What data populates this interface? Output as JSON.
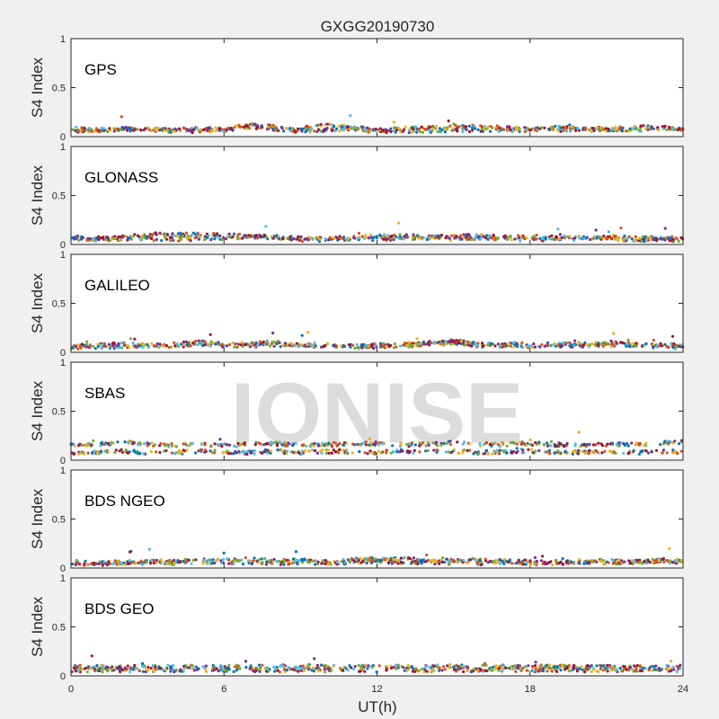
{
  "chart_data": {
    "type": "scatter",
    "title": "GXGG20190730",
    "xlabel": "UT(h)",
    "ylabel": "S4 Index",
    "xlim": [
      0,
      24
    ],
    "ylim": [
      0,
      1
    ],
    "x_ticks": [
      "0",
      "6",
      "12",
      "18",
      "24"
    ],
    "y_ticks": [
      "0",
      "0.5",
      "1"
    ],
    "watermark": "IONISE",
    "series_colors": [
      "#0072bd",
      "#d95319",
      "#edb120",
      "#7e2f8e",
      "#77ac30",
      "#4dbeee",
      "#a2142f"
    ],
    "panels": [
      {
        "label": "GPS",
        "series": [
          {
            "x": [
              0,
              1,
              2,
              3,
              4,
              5,
              6,
              7,
              8,
              9,
              10,
              11,
              12,
              13,
              14,
              15,
              16,
              17,
              18,
              19,
              20,
              21,
              22,
              23,
              24
            ],
            "values": [
              0.06,
              0.06,
              0.07,
              0.07,
              0.06,
              0.06,
              0.07,
              0.1,
              0.08,
              0.06,
              0.07,
              0.07,
              0.06,
              0.06,
              0.06,
              0.07,
              0.07,
              0.07,
              0.07,
              0.06,
              0.07,
              0.07,
              0.07,
              0.08,
              0.07
            ]
          },
          {
            "x": [
              0,
              1,
              2,
              3,
              4,
              5,
              6,
              7,
              8,
              9,
              10,
              11,
              12,
              13,
              14,
              15,
              16,
              17,
              18,
              19,
              20,
              21,
              22,
              23,
              24
            ],
            "values": [
              0.08,
              0.07,
              0.08,
              0.07,
              0.07,
              0.08,
              0.07,
              0.12,
              0.1,
              0.08,
              0.12,
              0.09,
              0.07,
              0.08,
              0.09,
              0.1,
              0.1,
              0.09,
              0.08,
              0.09,
              0.08,
              0.08,
              0.09,
              0.1,
              0.08
            ]
          }
        ]
      },
      {
        "label": "GLONASS",
        "series": [
          {
            "x": [
              0,
              1,
              2,
              3,
              4,
              5,
              6,
              7,
              8,
              9,
              10,
              11,
              12,
              13,
              14,
              15,
              16,
              17,
              18,
              19,
              20,
              21,
              22,
              23,
              24
            ],
            "values": [
              0.05,
              0.06,
              0.07,
              0.1,
              0.1,
              0.1,
              0.09,
              0.09,
              0.07,
              0.05,
              0.05,
              0.06,
              0.06,
              0.06,
              0.07,
              0.06,
              0.07,
              0.06,
              0.05,
              0.06,
              0.06,
              0.06,
              0.05,
              0.05,
              0.05
            ]
          },
          {
            "x": [
              0,
              1,
              2,
              3,
              4,
              5,
              6,
              7,
              8,
              9,
              10,
              11,
              12,
              13,
              14,
              15,
              16,
              17,
              18,
              19,
              20,
              21,
              22,
              23,
              24
            ],
            "values": [
              0.08,
              0.05,
              0.06,
              0.06,
              0.05,
              0.06,
              0.07,
              0.08,
              0.08,
              0.06,
              0.06,
              0.07,
              0.08,
              0.09,
              0.07,
              0.08,
              0.09,
              0.07,
              0.08,
              0.07,
              0.07,
              0.08,
              0.07,
              0.06,
              0.06
            ]
          }
        ]
      },
      {
        "label": "GALILEO",
        "series": [
          {
            "x": [
              0,
              1,
              2,
              3,
              4,
              5,
              6,
              7,
              8,
              9,
              10,
              11,
              12,
              13,
              14,
              15,
              16,
              17,
              18,
              19,
              20,
              21,
              22,
              23,
              24
            ],
            "values": [
              0.05,
              0.05,
              0.06,
              0.07,
              0.06,
              0.09,
              0.07,
              0.07,
              0.08,
              0.07,
              0.07,
              0.06,
              0.06,
              0.07,
              0.08,
              0.1,
              0.07,
              0.07,
              0.06,
              0.07,
              0.07,
              0.08,
              0.07,
              0.06,
              0.05
            ]
          },
          {
            "x": [
              0,
              1,
              2,
              3,
              4,
              5,
              6,
              7,
              8,
              9,
              10,
              11,
              12,
              13,
              14,
              15,
              16,
              17,
              18,
              19,
              20,
              21,
              22,
              23,
              24
            ],
            "values": [
              0.06,
              0.07,
              0.08,
              0.07,
              0.08,
              0.1,
              0.08,
              0.09,
              0.1,
              0.08,
              0.07,
              0.07,
              0.07,
              0.08,
              0.09,
              0.12,
              0.08,
              0.08,
              0.08,
              0.08,
              0.09,
              0.1,
              0.08,
              0.07,
              0.07
            ]
          }
        ]
      },
      {
        "label": "SBAS",
        "series": [
          {
            "x": [
              0,
              1,
              2,
              3,
              4,
              5,
              6,
              7,
              8,
              9,
              10,
              11,
              12,
              13,
              14,
              15,
              16,
              17,
              18,
              19,
              20,
              21,
              22,
              23,
              24
            ],
            "values": [
              0.15,
              0.16,
              0.18,
              0.16,
              0.15,
              0.17,
              0.15,
              0.16,
              0.17,
              0.15,
              0.16,
              0.16,
              0.17,
              0.16,
              0.16,
              0.18,
              0.16,
              0.16,
              0.17,
              0.16,
              0.15,
              0.16,
              0.16,
              0.17,
              0.19
            ]
          },
          {
            "x": [
              0,
              1,
              2,
              3,
              4,
              5,
              6,
              7,
              8,
              9,
              10,
              11,
              12,
              13,
              14,
              15,
              16,
              17,
              18,
              19,
              20,
              21,
              22,
              23,
              24
            ],
            "values": [
              0.08,
              0.08,
              0.09,
              0.08,
              0.08,
              0.09,
              0.08,
              0.08,
              0.09,
              0.08,
              0.09,
              0.09,
              0.08,
              0.09,
              0.09,
              0.09,
              0.08,
              0.08,
              0.09,
              0.08,
              0.08,
              0.09,
              0.08,
              0.08,
              0.09
            ]
          }
        ]
      },
      {
        "label": "BDS NGEO",
        "series": [
          {
            "x": [
              0,
              1,
              2,
              3,
              4,
              5,
              6,
              7,
              8,
              9,
              10,
              11,
              12,
              13,
              14,
              15,
              16,
              17,
              18,
              19,
              20,
              21,
              22,
              23,
              24
            ],
            "values": [
              0.05,
              0.04,
              0.05,
              0.05,
              0.05,
              0.06,
              0.06,
              0.06,
              0.05,
              0.06,
              0.05,
              0.06,
              0.07,
              0.06,
              0.06,
              0.05,
              0.05,
              0.06,
              0.05,
              0.05,
              0.06,
              0.05,
              0.06,
              0.07,
              0.06
            ]
          },
          {
            "x": [
              0,
              1,
              2,
              3,
              4,
              5,
              6,
              7,
              8,
              9,
              10,
              11,
              12,
              13,
              14,
              15,
              16,
              17,
              18,
              19,
              20,
              21,
              22,
              23,
              24
            ],
            "values": [
              0.06,
              0.05,
              0.06,
              0.07,
              0.06,
              0.07,
              0.09,
              0.09,
              0.07,
              0.08,
              0.06,
              0.08,
              0.09,
              0.09,
              0.08,
              0.07,
              0.08,
              0.07,
              0.06,
              0.06,
              0.07,
              0.07,
              0.06,
              0.08,
              0.08
            ]
          }
        ]
      },
      {
        "label": "BDS GEO",
        "series": [
          {
            "x": [
              0,
              1,
              2,
              3,
              4,
              5,
              6,
              7,
              8,
              9,
              10,
              11,
              12,
              13,
              14,
              15,
              16,
              17,
              18,
              19,
              20,
              21,
              22,
              23,
              24
            ],
            "values": [
              0.09,
              0.09,
              0.09,
              0.09,
              0.09,
              0.09,
              0.09,
              0.09,
              0.09,
              0.1,
              0.09,
              0.09,
              0.09,
              0.09,
              0.09,
              0.1,
              0.09,
              0.09,
              0.09,
              0.09,
              0.09,
              0.09,
              0.09,
              0.09,
              0.09
            ]
          },
          {
            "x": [
              0,
              1,
              2,
              3,
              4,
              5,
              6,
              7,
              8,
              9,
              10,
              11,
              12,
              13,
              14,
              15,
              16,
              17,
              18,
              19,
              20,
              21,
              22,
              23,
              24
            ],
            "values": [
              0.06,
              0.06,
              0.06,
              0.06,
              0.06,
              0.06,
              0.06,
              0.06,
              0.06,
              0.06,
              0.06,
              0.06,
              0.06,
              0.06,
              0.06,
              0.06,
              0.06,
              0.06,
              0.06,
              0.06,
              0.06,
              0.06,
              0.06,
              0.06,
              0.06
            ]
          }
        ]
      }
    ]
  }
}
